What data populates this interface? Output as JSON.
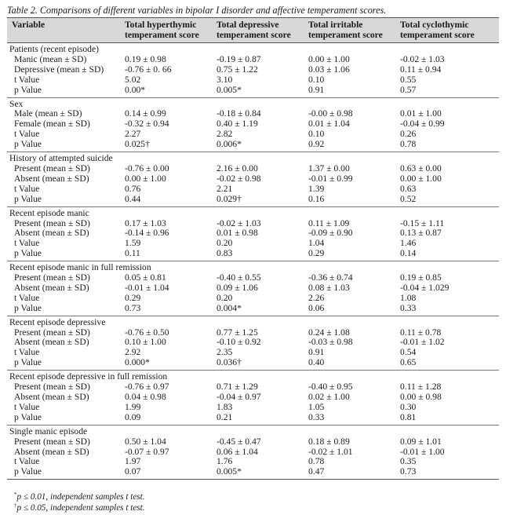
{
  "caption": "Table 2. Comparisons of different variables in bipolar I disorder and affective temperament scores.",
  "headers": {
    "0": "Variable",
    "1a": "Total hyperthymic",
    "1b": "temperament score",
    "2a": "Total depressive",
    "2b": "temperament score",
    "3a": "Total irritable",
    "3b": "temperament score",
    "4a": "Total cyclothymic",
    "4b": "temperament score"
  },
  "sections": [
    {
      "title": "Patients (recent episode)",
      "rows": [
        {
          "label": "Manic (mean ± SD)",
          "cells": [
            "0.19 ± 0.98",
            "-0.19 ± 0.87",
            "0.00 ± 1.00",
            "-0.02 ± 1.03"
          ]
        },
        {
          "label": "Depressive (mean ±  SD)",
          "cells": [
            "-0.76 ± 0. 66",
            "0.75 ± 1.22",
            "0.03 ± 1.06",
            "0.11 ± 0.94"
          ]
        },
        {
          "label": "t Value",
          "cells": [
            "5.02",
            "3.10",
            "0.10",
            "0.55"
          ]
        },
        {
          "label": "p Value",
          "cells": [
            "0.00*",
            "0.005*",
            "0.91",
            "0.57"
          ]
        }
      ]
    },
    {
      "title": "Sex",
      "rows": [
        {
          "label": "Male (mean ± SD)",
          "cells": [
            "0.14 ± 0.99",
            "-0.18 ± 0.84",
            "-0.00 ± 0.98",
            "0.01 ± 1.00"
          ]
        },
        {
          "label": "Female (mean ± SD)",
          "cells": [
            "-0.32 ± 0.94",
            "0.40 ± 1.19",
            "0.01 ± 1.04",
            "-0.04 ± 0.99"
          ]
        },
        {
          "label": "t Value",
          "cells": [
            "2.27",
            "2.82",
            "0.10",
            "0.26"
          ]
        },
        {
          "label": "p Value",
          "cells": [
            "0.025†",
            "0.006*",
            "0.92",
            "0.78"
          ]
        }
      ]
    },
    {
      "title": "History of attempted suicide",
      "rows": [
        {
          "label": "Present (mean ± SD)",
          "cells": [
            "-0.76 ± 0.00",
            "2.16 ± 0.00",
            "1.37 ± 0.00",
            "0.63 ± 0.00"
          ]
        },
        {
          "label": "Absent (mean ± SD)",
          "cells": [
            "0.00 ± 1.00",
            "-0.02 ± 0.98",
            "-0.01 ± 0.99",
            "0.00 ± 1.00"
          ]
        },
        {
          "label": "t Value",
          "cells": [
            "0.76",
            "2.21",
            "1.39",
            "0.63"
          ]
        },
        {
          "label": "p Value",
          "cells": [
            "0.44",
            "0.029†",
            "0.16",
            "0.52"
          ]
        }
      ]
    },
    {
      "title": "Recent episode manic",
      "rows": [
        {
          "label": "Present (mean ± SD)",
          "cells": [
            "0.17 ± 1.03",
            "-0.02 ± 1.03",
            "0.11 ± 1.09",
            "-0.15 ± 1.11"
          ]
        },
        {
          "label": "Absent (mean ± SD)",
          "cells": [
            "-0.14 ± 0.96",
            "0.01 ± 0.98",
            "-0.09 ± 0.90",
            "0.13 ± 0.87"
          ]
        },
        {
          "label": "t Value",
          "cells": [
            "1.59",
            "0.20",
            "1.04",
            "1.46"
          ]
        },
        {
          "label": "p Value",
          "cells": [
            "0.11",
            "0.83",
            "0.29",
            "0.14"
          ]
        }
      ]
    },
    {
      "title": "Recent episode manic in full remission",
      "rows": [
        {
          "label": "Present (mean ± SD)",
          "cells": [
            "0.05 ± 0.81",
            "-0.40 ± 0.55",
            "-0.36 ± 0.74",
            "0.19 ± 0.85"
          ]
        },
        {
          "label": "Absent (mean ± SD)",
          "cells": [
            "-0.01 ± 1.04",
            "0.09 ± 1.06",
            "0.08 ± 1.03",
            "-0.04 ± 1.029"
          ]
        },
        {
          "label": "t Value",
          "cells": [
            "0.29",
            "0.20",
            "2.26",
            "1.08"
          ]
        },
        {
          "label": "p Value",
          "cells": [
            "0.73",
            "0.004*",
            "0.06",
            "0.33"
          ]
        }
      ]
    },
    {
      "title": "Recent episode depressive",
      "rows": [
        {
          "label": "Present (mean ± SD)",
          "cells": [
            "-0.76 ± 0.50",
            "0.77 ± 1.25",
            "0.24 ± 1.08",
            "0.11 ± 0.78"
          ]
        },
        {
          "label": "Absent (mean ± SD)",
          "cells": [
            "0.10 ± 1.00",
            "-0.10 ± 0.92",
            "-0.03 ± 0.98",
            "-0.01 ± 1.02"
          ]
        },
        {
          "label": "t Value",
          "cells": [
            "2.92",
            "2.35",
            "0.91",
            "0.54"
          ]
        },
        {
          "label": "p Value",
          "cells": [
            "0.000*",
            "0.036†",
            "0.40",
            "0.65"
          ]
        }
      ]
    },
    {
      "title": "Recent episode depressive in full remission",
      "rows": [
        {
          "label": "Present (mean ± SD)",
          "cells": [
            "-0.76 ± 0.97",
            "0.71 ± 1.29",
            "-0.40 ± 0.95",
            "0.11 ± 1.28"
          ]
        },
        {
          "label": "Absent (mean ± SD)",
          "cells": [
            "0.04 ± 0.98",
            "-0.04 ± 0.97",
            "0.02 ± 1.00",
            "0.00 ± 0.98"
          ]
        },
        {
          "label": "t Value",
          "cells": [
            "1.99",
            "1.83",
            "1.05",
            "0.30"
          ]
        },
        {
          "label": "p Value",
          "cells": [
            "0.09",
            "0.21",
            "0.33",
            "0.81"
          ]
        }
      ]
    },
    {
      "title": "Single manic episode",
      "rows": [
        {
          "label": "Present (mean ± SD)",
          "cells": [
            "0.50 ± 1.04",
            "-0.45 ± 0.47",
            "0.18 ± 0.89",
            "0.09 ± 1.01"
          ]
        },
        {
          "label": "Absent (mean ± SD)",
          "cells": [
            "-0.07 ± 0.97",
            "0.06 ± 1.04",
            "-0.02 ± 1.01",
            "-0.01 ± 1.00"
          ]
        },
        {
          "label": "t Value",
          "cells": [
            "1.97",
            "1.76",
            "0.78",
            "0.35"
          ]
        },
        {
          "label": "p Value",
          "cells": [
            "0.07",
            "0.005*",
            "0.47",
            "0.73"
          ]
        }
      ]
    }
  ],
  "footnotes": [
    {
      "mark": "*",
      "text": "p ≤ 0.01, independent samples t test."
    },
    {
      "mark": "†",
      "text": "p ≤ 0.05, independent samples t test."
    }
  ]
}
